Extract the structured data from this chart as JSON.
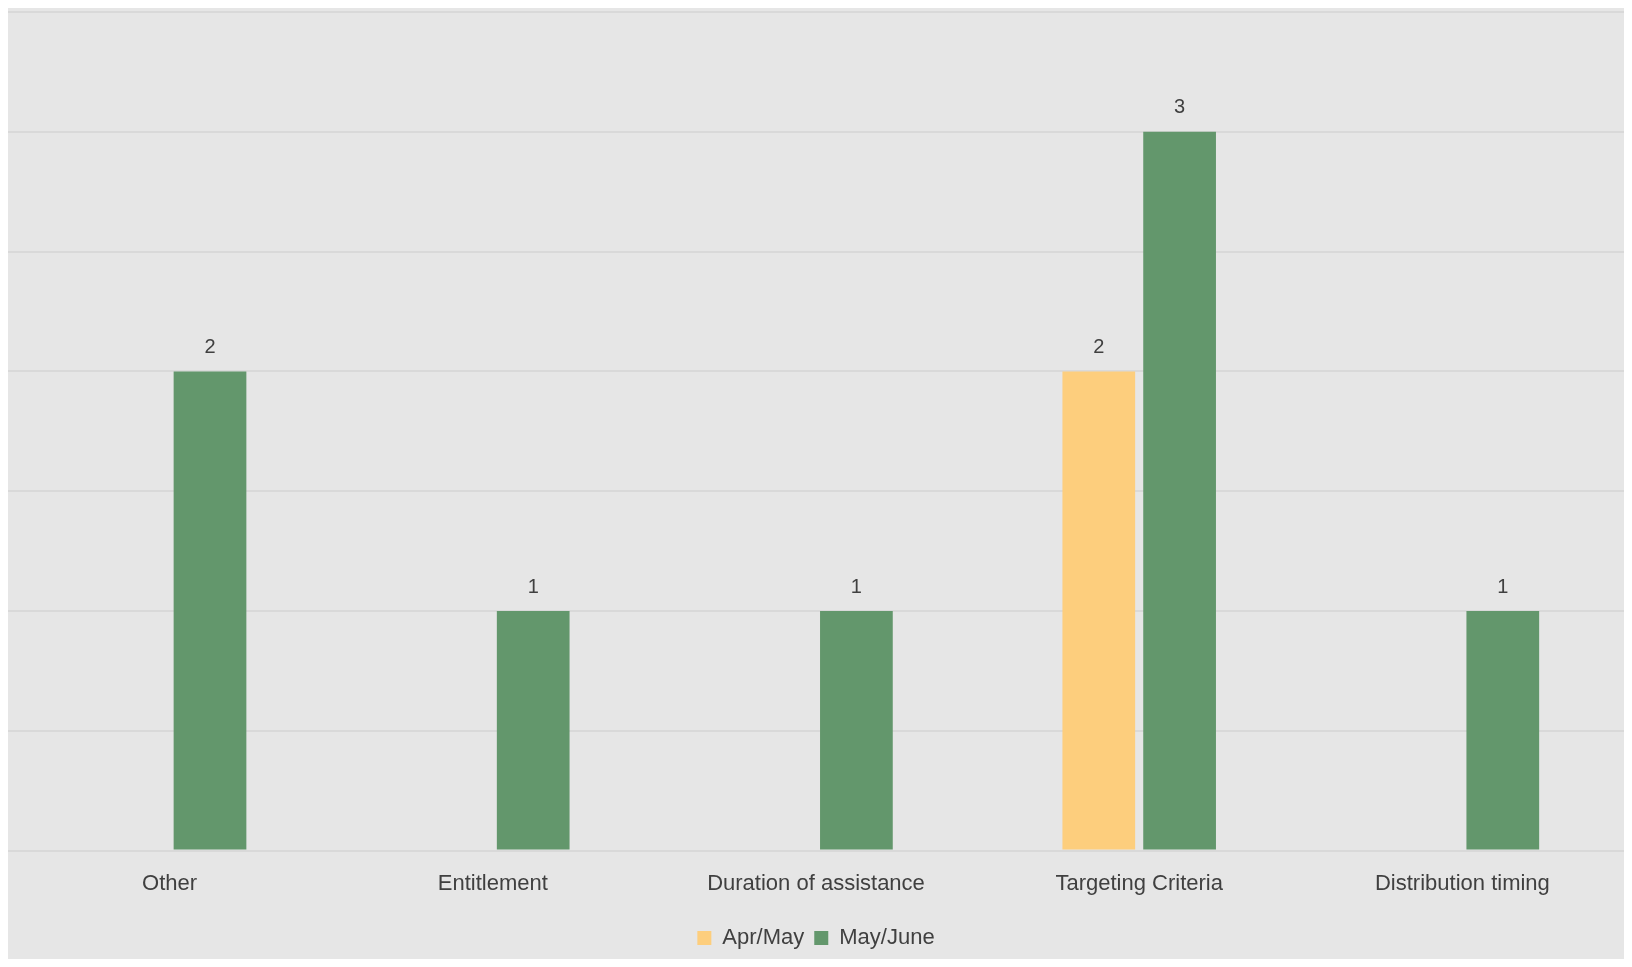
{
  "chart_data": {
    "type": "bar",
    "categories": [
      "Other",
      "Entitlement",
      "Duration of assistance",
      "Targeting Criteria",
      "Distribution timing"
    ],
    "series": [
      {
        "name": "Apr/May",
        "color": "#fdce7d",
        "values": [
          null,
          null,
          null,
          2,
          null
        ]
      },
      {
        "name": "May/June",
        "color": "#63976c",
        "values": [
          2,
          1,
          1,
          3,
          1
        ]
      }
    ],
    "ylim": [
      0,
      3.5
    ],
    "yticks": [
      {
        "value": 0,
        "label": null
      },
      {
        "value": 0.5,
        "label": null
      },
      {
        "value": 1,
        "label": null
      },
      {
        "value": 1.5,
        "label": null
      },
      {
        "value": 2,
        "label": null
      },
      {
        "value": 2.5,
        "label": null
      },
      {
        "value": 3,
        "label": null
      },
      {
        "value": 3.5,
        "label": null
      }
    ],
    "tick_labels": "x",
    "grid": "y",
    "legend": "bottom",
    "data_labels": true
  }
}
